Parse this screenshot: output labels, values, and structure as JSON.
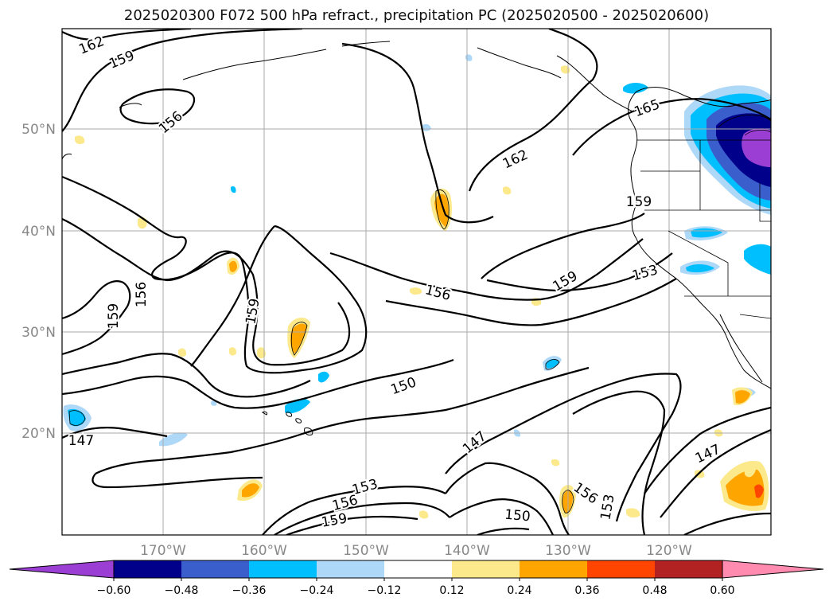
{
  "title": "2025020300 F072 500 hPa refract., precipitation PC (2025020500 - 2025020600)",
  "lat_labels": [
    "50°N",
    "40°N",
    "30°N",
    "20°N"
  ],
  "lon_labels": [
    "170°W",
    "160°W",
    "150°W",
    "140°W",
    "130°W",
    "120°W"
  ],
  "contour_labels": [
    "162",
    "159",
    "156",
    "165",
    "162",
    "159",
    "159",
    "153",
    "156",
    "156",
    "159",
    "159",
    "150",
    "147",
    "147",
    "153",
    "156",
    "159",
    "156",
    "150",
    "153",
    "147"
  ],
  "colorbar": {
    "ticks": [
      "−0.60",
      "−0.48",
      "−0.36",
      "−0.24",
      "−0.12",
      "0.12",
      "0.24",
      "0.36",
      "0.48",
      "0.60"
    ],
    "colors": [
      "#9b3fd4",
      "#00008b",
      "#3a5fcd",
      "#00bfff",
      "#add8f8",
      "#ffffff",
      "#fce98c",
      "#ffa500",
      "#ff4500",
      "#b22222",
      "#ff8cb0"
    ]
  },
  "colors": {
    "grid": "#aaaaaa",
    "contour": "#000000",
    "label_gray": "#888888"
  }
}
